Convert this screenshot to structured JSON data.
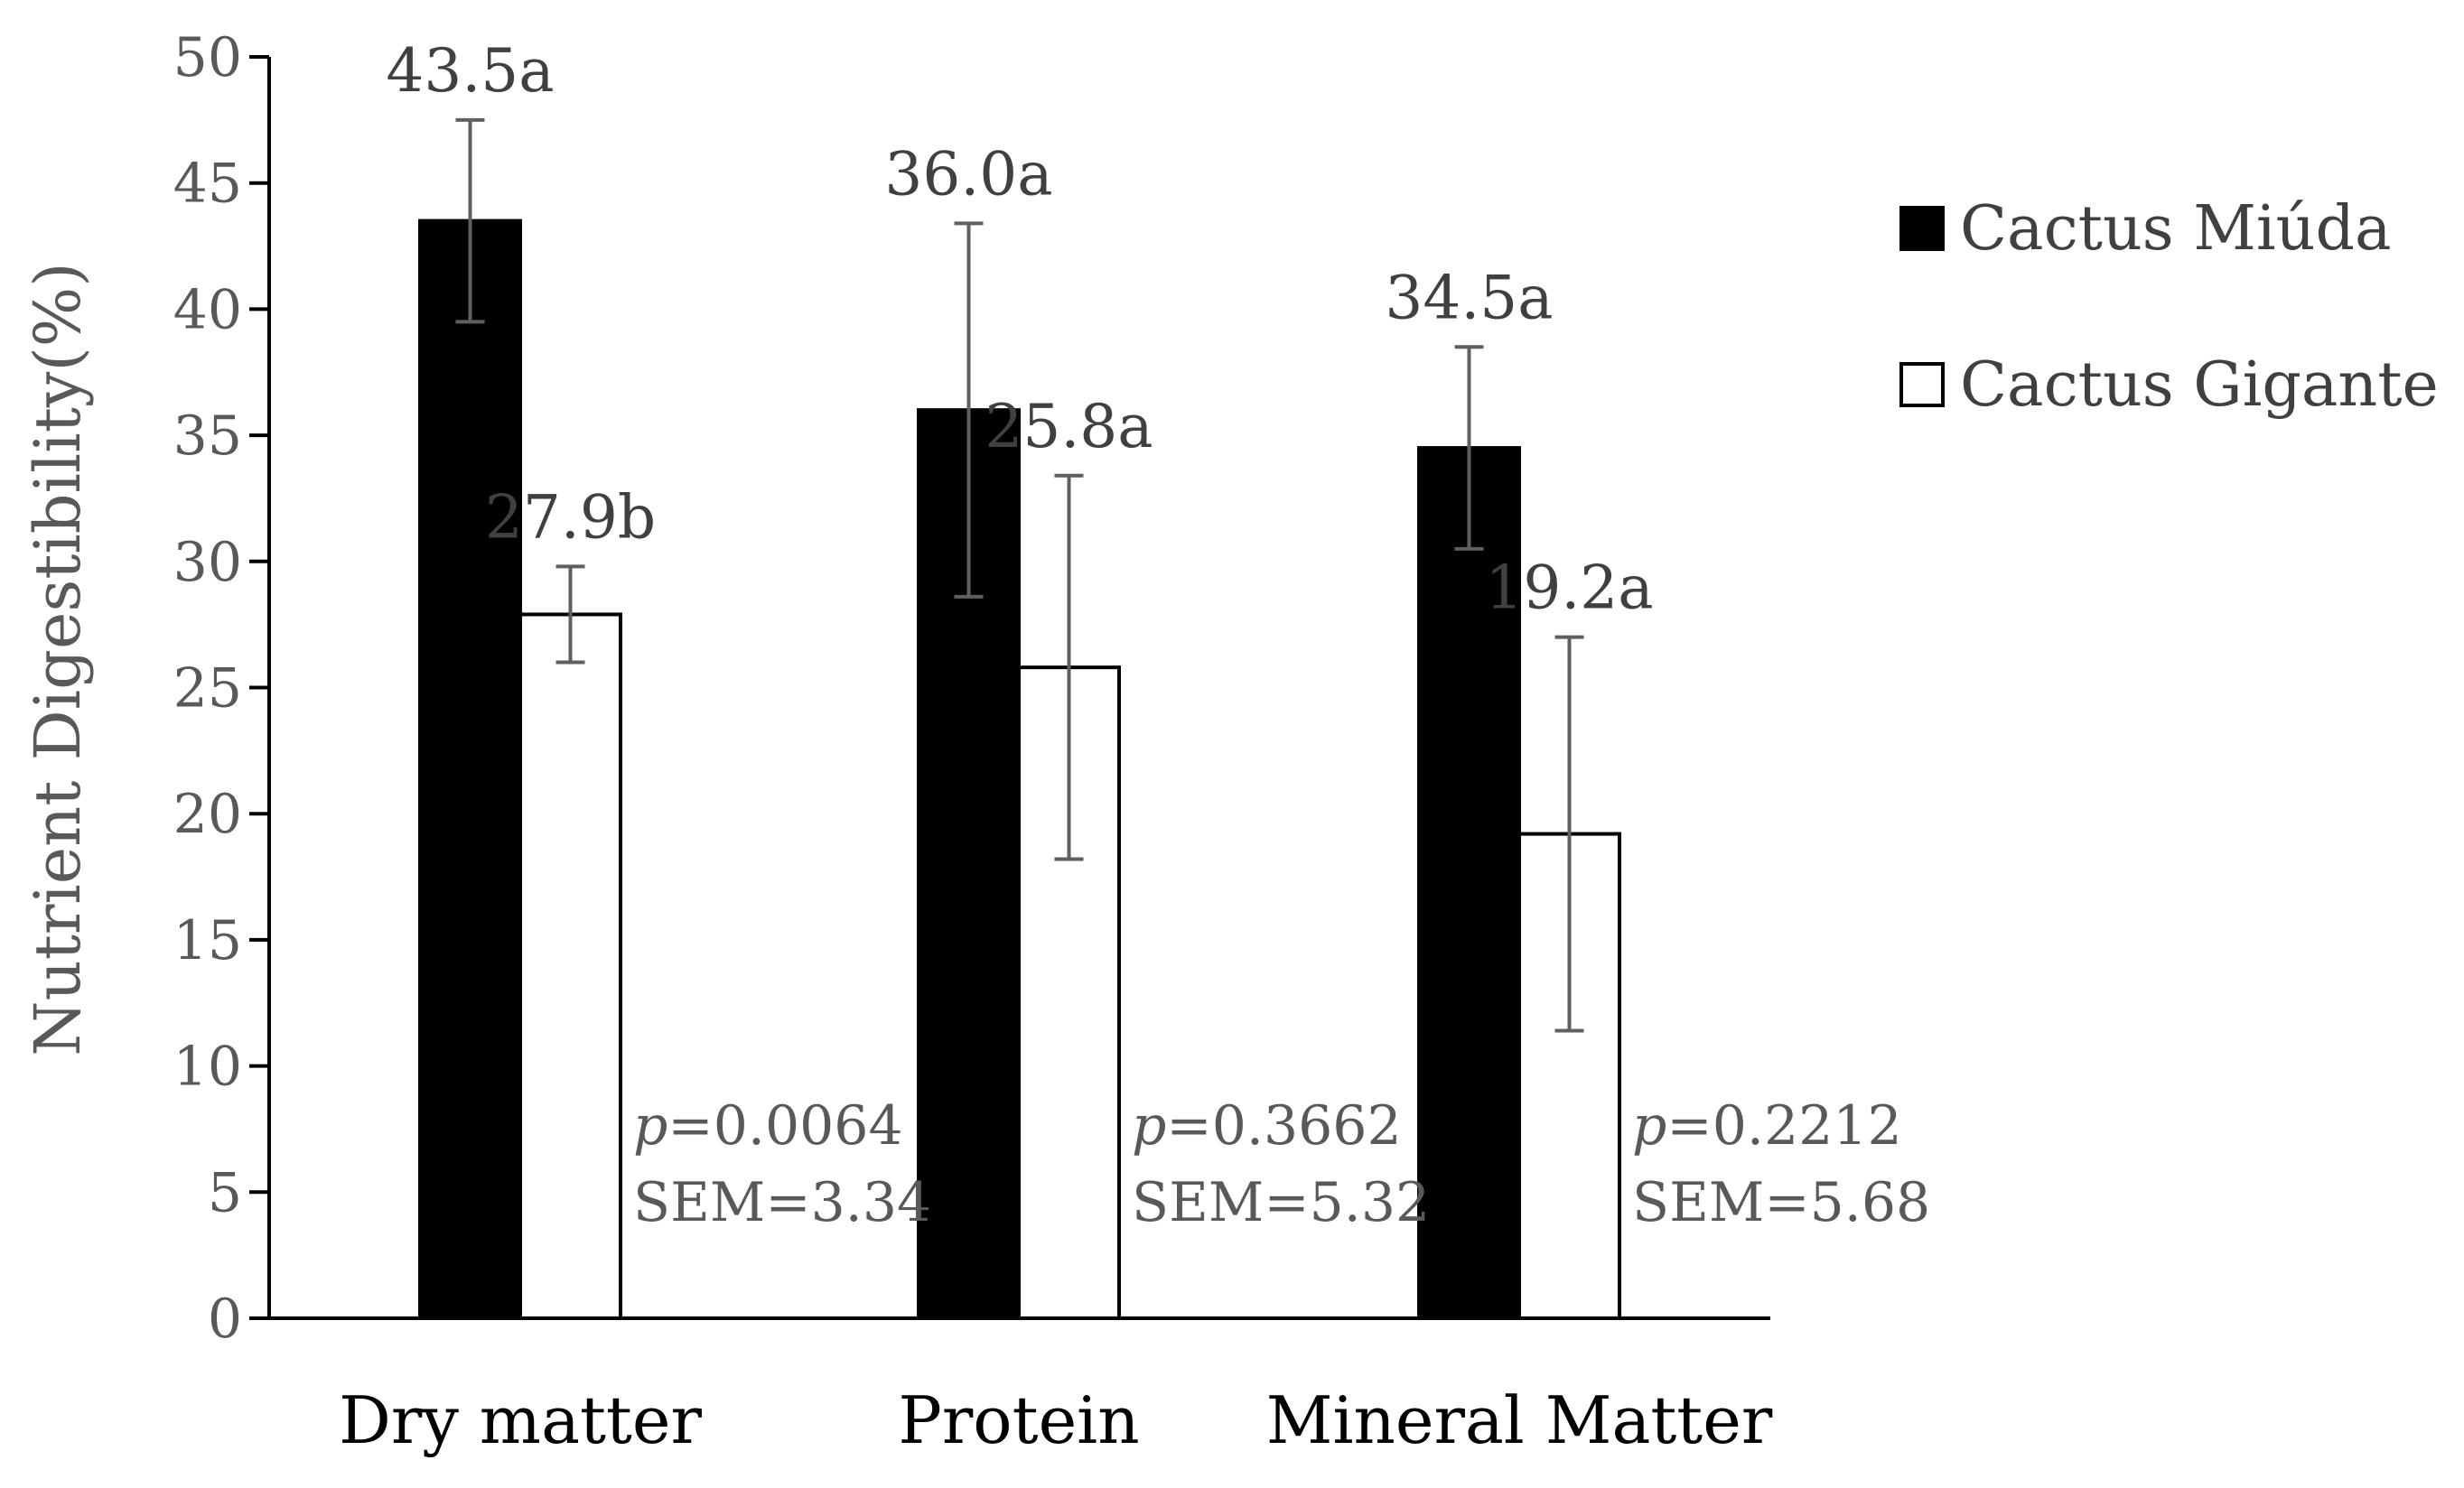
{
  "chart_data": {
    "type": "bar",
    "title": "",
    "xlabel": "",
    "ylabel": "Nutrient Digestibility(%)",
    "ylim": [
      0,
      50
    ],
    "yticks": [
      0,
      5,
      10,
      15,
      20,
      25,
      30,
      35,
      40,
      45,
      50
    ],
    "grid": false,
    "legend_position": "right",
    "categories": [
      "Dry matter",
      "Protein",
      "Mineral Matter"
    ],
    "series": [
      {
        "name": "Cactus Miúda",
        "color": "#000000",
        "values": [
          43.5,
          36.0,
          34.5
        ],
        "errors": [
          4.0,
          7.4,
          4.0
        ],
        "labels": [
          "43.5a",
          "36.0a",
          "34.5a"
        ]
      },
      {
        "name": "Cactus Gigante",
        "color": "#ffffff",
        "values": [
          27.9,
          25.8,
          19.2
        ],
        "errors": [
          1.9,
          7.6,
          7.8
        ],
        "labels": [
          "27.9b",
          "25.8a",
          "19.2a"
        ]
      }
    ],
    "annotations": [
      {
        "p_prefix": "p",
        "p_value": "=0.0064",
        "sem": "SEM=3.34"
      },
      {
        "p_prefix": "p",
        "p_value": "=0.3662",
        "sem": "SEM=5.32"
      },
      {
        "p_prefix": "p",
        "p_value": "=0.2212",
        "sem": "SEM=5.68"
      }
    ]
  }
}
